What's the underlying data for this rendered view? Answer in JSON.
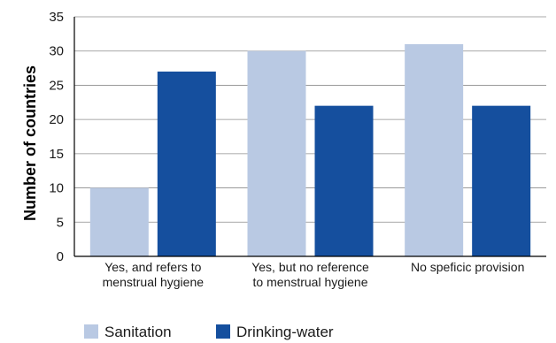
{
  "chart_data": {
    "type": "bar",
    "title": "",
    "xlabel": "",
    "ylabel": "Number of countries",
    "ylim": [
      0,
      35
    ],
    "yticks": [
      0,
      5,
      10,
      15,
      20,
      25,
      30,
      35
    ],
    "grid": true,
    "legend_position": "bottom-left",
    "categories": [
      [
        "Yes, and refers to",
        "menstrual hygiene"
      ],
      [
        "Yes, but no reference",
        "to menstrual hygiene"
      ],
      [
        "No speficic provision"
      ]
    ],
    "series": [
      {
        "name": "Sanitation",
        "color": "#b9c9e3",
        "values": [
          10,
          30,
          31
        ]
      },
      {
        "name": "Drinking-water",
        "color": "#154f9e",
        "values": [
          27,
          22,
          22
        ]
      }
    ]
  }
}
